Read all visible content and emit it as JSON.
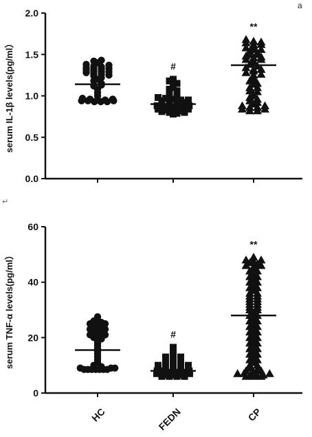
{
  "panel_tag": "a",
  "return_mark": "↵",
  "chart_data": [
    {
      "type": "scatter",
      "ylabel": "serum IL-1β  levels(pg/ml）",
      "ylim": [
        0,
        2.0
      ],
      "yticks": [
        "0.0",
        "0.5",
        "1.0",
        "1.5",
        "2.0"
      ],
      "categories": [
        "HC",
        "FEDN",
        "CP"
      ],
      "show_x_tick_labels": false,
      "series": [
        {
          "category": "HC",
          "marker": "circle",
          "mean": 1.14,
          "significance": "",
          "values": [
            1.42,
            1.4,
            1.38,
            1.36,
            1.35,
            1.34,
            1.33,
            1.32,
            1.31,
            1.3,
            1.29,
            1.28,
            1.27,
            1.26,
            1.25,
            1.24,
            1.22,
            1.2,
            1.18,
            1.15,
            1.12,
            1.08,
            1.04,
            1.0,
            0.97,
            0.96,
            0.95,
            0.94,
            0.94,
            0.93,
            0.93,
            0.93,
            0.94,
            0.95,
            0.96,
            1.37,
            1.33,
            1.29,
            1.13,
            1.43
          ]
        },
        {
          "category": "FEDN",
          "marker": "square",
          "mean": 0.9,
          "significance": "#",
          "values": [
            1.2,
            1.18,
            1.15,
            1.12,
            1.1,
            1.08,
            1.06,
            1.04,
            1.02,
            1.0,
            0.99,
            0.98,
            0.97,
            0.96,
            0.95,
            0.94,
            0.93,
            0.92,
            0.91,
            0.9,
            0.89,
            0.88,
            0.87,
            0.86,
            0.85,
            0.84,
            0.83,
            0.82,
            0.81,
            0.8,
            0.79,
            0.78,
            0.8,
            0.82,
            0.84,
            0.86,
            0.88,
            0.9,
            0.92,
            0.95
          ]
        },
        {
          "category": "CP",
          "marker": "triangle",
          "mean": 1.37,
          "significance": "**",
          "values": [
            1.68,
            1.66,
            1.64,
            1.62,
            1.6,
            1.58,
            1.56,
            1.54,
            1.52,
            1.5,
            1.48,
            1.46,
            1.44,
            1.42,
            1.4,
            1.38,
            1.36,
            1.34,
            1.32,
            1.3,
            1.28,
            1.25,
            1.22,
            1.18,
            1.14,
            1.1,
            1.06,
            1.02,
            0.98,
            0.94,
            0.9,
            0.88,
            0.86,
            0.84,
            0.82,
            0.82,
            0.84,
            0.86,
            0.88,
            0.92,
            0.96,
            1.0,
            1.05,
            1.1,
            1.15,
            1.2,
            1.26,
            1.32,
            1.44,
            1.5,
            1.56,
            1.62,
            1.65,
            1.47
          ]
        }
      ]
    },
    {
      "type": "scatter",
      "ylabel": "serum TNF-α  levels(pg/ml）",
      "ylim": [
        0,
        60
      ],
      "yticks": [
        "0",
        "20",
        "40",
        "60"
      ],
      "categories": [
        "HC",
        "FEDN",
        "CP"
      ],
      "show_x_tick_labels": true,
      "series": [
        {
          "category": "HC",
          "marker": "circle",
          "mean": 15.5,
          "significance": "",
          "values": [
            27.5,
            26.5,
            26.0,
            25.5,
            25.0,
            24.5,
            24.0,
            23.5,
            23.0,
            22.5,
            22.0,
            21.5,
            21.0,
            20.5,
            20.0,
            19.5,
            19.0,
            18.0,
            17.0,
            16.0,
            15.0,
            14.0,
            13.0,
            12.0,
            11.0,
            10.0,
            9.5,
            9.0,
            8.5,
            8.5,
            8.5,
            8.5,
            8.5,
            8.5,
            8.5,
            9.0,
            9.0,
            21.0,
            23.0,
            25.0
          ]
        },
        {
          "category": "FEDN",
          "marker": "square",
          "mean": 8.0,
          "significance": "#",
          "values": [
            16.5,
            16.0,
            15.0,
            14.0,
            13.0,
            12.5,
            12.0,
            11.5,
            11.0,
            10.5,
            10.0,
            10.0,
            9.5,
            9.5,
            9.0,
            9.0,
            8.5,
            8.5,
            8.0,
            8.0,
            7.5,
            7.5,
            7.0,
            7.0,
            6.5,
            6.5,
            6.5,
            6.0,
            6.0,
            6.0,
            6.0,
            6.5,
            7.0,
            7.5,
            8.0,
            9.0,
            10.0,
            11.0,
            12.0,
            13.0
          ]
        },
        {
          "category": "CP",
          "marker": "triangle",
          "mean": 28.0,
          "significance": "**",
          "values": [
            49.0,
            48.0,
            47.5,
            47.0,
            46.5,
            46.0,
            45.5,
            45.0,
            44.0,
            43.0,
            42.0,
            41.0,
            40.0,
            39.0,
            38.0,
            37.0,
            36.0,
            35.0,
            34.0,
            33.0,
            32.0,
            31.0,
            30.0,
            29.0,
            28.0,
            27.0,
            26.0,
            25.0,
            24.0,
            23.0,
            22.0,
            21.0,
            20.0,
            19.0,
            18.0,
            17.0,
            16.0,
            15.0,
            14.0,
            13.0,
            12.0,
            11.0,
            10.0,
            9.0,
            8.5,
            8.0,
            7.5,
            7.0,
            7.0,
            6.5,
            6.5,
            6.0,
            6.0,
            6.0,
            6.5,
            7.0,
            8.0,
            10.0,
            12.0,
            14.0,
            16.0,
            18.0,
            20.0,
            22.0,
            24.0,
            26.0,
            28.0,
            30.0,
            32.0,
            34.0,
            36.0,
            38.0,
            40.0,
            42.0,
            44.0,
            46.0,
            48.0,
            35.0,
            33.0,
            31.0
          ]
        }
      ]
    }
  ]
}
